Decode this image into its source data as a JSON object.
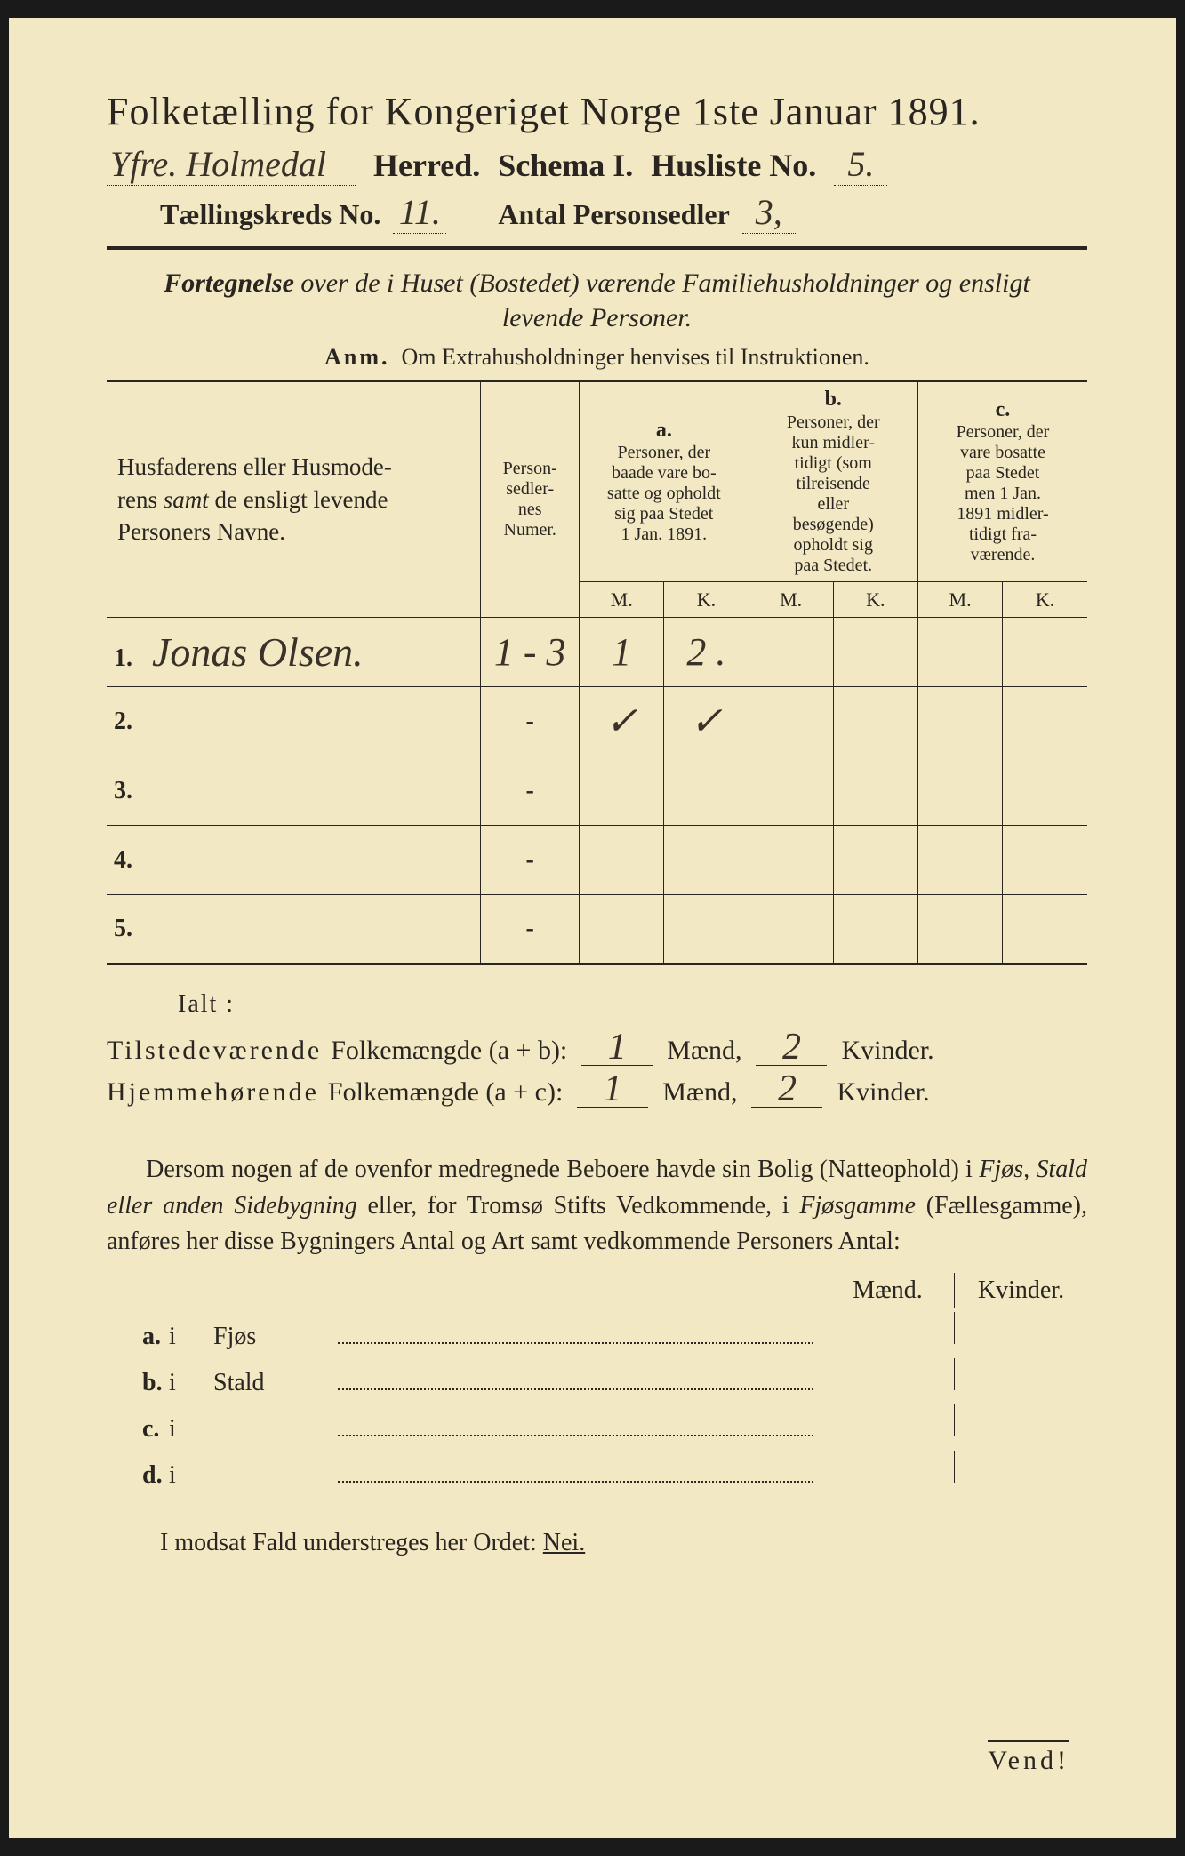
{
  "header": {
    "title": "Folketælling for Kongeriget Norge 1ste Januar 1891.",
    "herred_value": "Yfre. Holmedal",
    "herred_label": "Herred.",
    "schema_label": "Schema I.",
    "husliste_label": "Husliste No.",
    "husliste_value": "5.",
    "kreds_label": "Tællingskreds No.",
    "kreds_value": "11.",
    "antal_label": "Antal Personsedler",
    "antal_value": "3,"
  },
  "subtitle": {
    "line1_a": "Fortegnelse",
    "line1_b": " over de i Huset (Bostedet) værende Familiehusholdninger og ensligt",
    "line2": "levende Personer.",
    "anm_label": "Anm.",
    "anm_text": "Om Extrahusholdninger henvises til Instruktionen."
  },
  "table": {
    "col_name": "Husfaderens eller Husmoderens samt de ensligt levende Personers Navne.",
    "col_num": "Person-sedler-nes Numer.",
    "col_a_label": "a.",
    "col_a_text": "Personer, der baade vare bosatte og opholdt sig paa Stedet 1 Jan. 1891.",
    "col_b_label": "b.",
    "col_b_text": "Personer, der kun midlertidigt (som tilreisende eller besøgende) opholdt sig paa Stedet.",
    "col_c_label": "c.",
    "col_c_text": "Personer, der vare bosatte paa Stedet men 1 Jan. 1891 midlertidigt fraværende.",
    "m": "M.",
    "k": "K.",
    "rows": [
      {
        "n": "1.",
        "name": "Jonas Olsen.",
        "num": "1 - 3",
        "am": "1",
        "ak": "2 .",
        "bm": "",
        "bk": "",
        "cm": "",
        "ck": ""
      },
      {
        "n": "2.",
        "name": "",
        "num": "-",
        "am": "✓",
        "ak": "✓",
        "bm": "",
        "bk": "",
        "cm": "",
        "ck": ""
      },
      {
        "n": "3.",
        "name": "",
        "num": "-",
        "am": "",
        "ak": "",
        "bm": "",
        "bk": "",
        "cm": "",
        "ck": ""
      },
      {
        "n": "4.",
        "name": "",
        "num": "-",
        "am": "",
        "ak": "",
        "bm": "",
        "bk": "",
        "cm": "",
        "ck": ""
      },
      {
        "n": "5.",
        "name": "",
        "num": "-",
        "am": "",
        "ak": "",
        "bm": "",
        "bk": "",
        "cm": "",
        "ck": ""
      }
    ]
  },
  "totals": {
    "ialt": "Ialt :",
    "line1_a": "Tilstedeværende",
    "line1_b": "Folkemængde (a + b):",
    "line1_m": "1",
    "maend": "Mænd,",
    "line1_k": "2",
    "kvinder": "Kvinder.",
    "line2_a": "Hjemmehørende",
    "line2_b": "Folkemængde (a + c):",
    "line2_m": "1",
    "line2_k": "2"
  },
  "paragraph": {
    "text1": "Dersom nogen af de ovenfor medregnede Beboere havde sin Bolig (Natteophold) i ",
    "it1": "Fjøs, Stald eller anden Sidebygning",
    "text2": " eller, for Tromsø Stifts Vedkommende, i ",
    "it2": "Fjøsgamme",
    "text3": " (Fællesgamme), anføres her disse Bygningers Antal og Art samt vedkommende Personers Antal:"
  },
  "mk": {
    "maend": "Mænd.",
    "kvinder": "Kvinder.",
    "rows": [
      {
        "lbl": "a.",
        "i": "i",
        "name": "Fjøs"
      },
      {
        "lbl": "b.",
        "i": "i",
        "name": "Stald"
      },
      {
        "lbl": "c.",
        "i": "i",
        "name": ""
      },
      {
        "lbl": "d.",
        "i": "i",
        "name": ""
      }
    ]
  },
  "footer": {
    "text": "I modsat Fald understreges her Ordet: ",
    "nei": "Nei."
  },
  "vendi": "Vend!"
}
